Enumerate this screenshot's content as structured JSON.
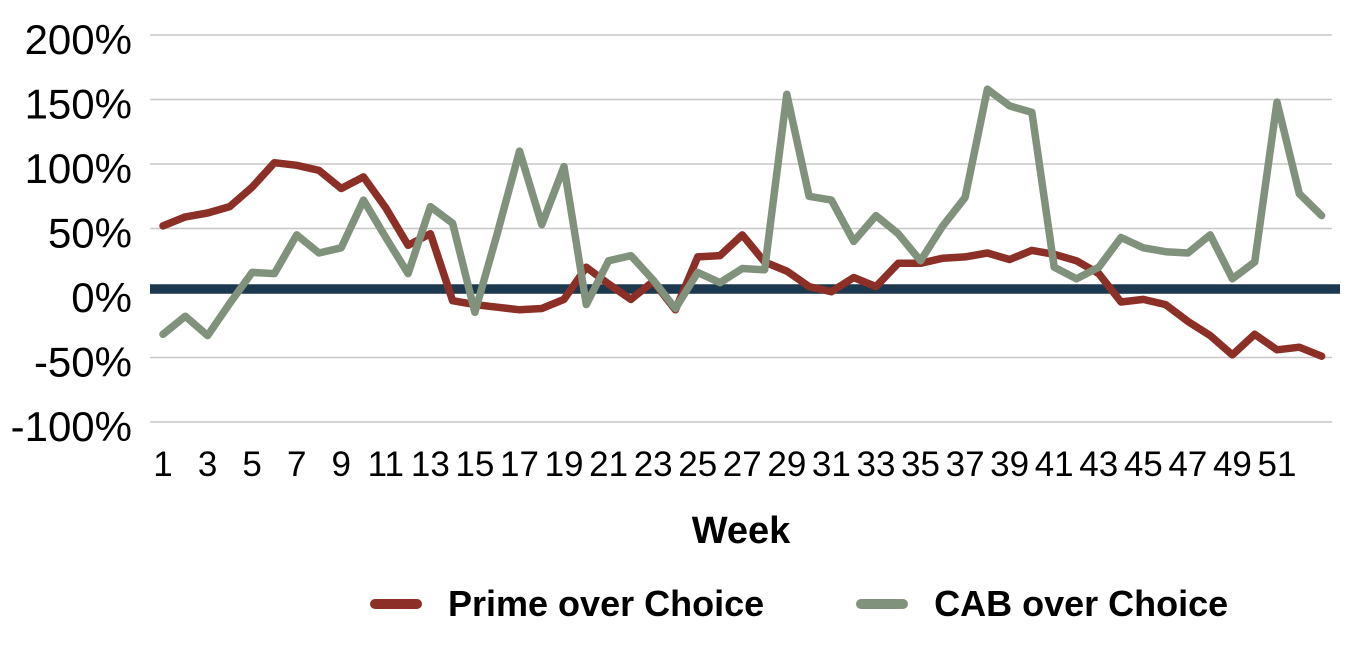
{
  "chart_data": {
    "type": "line",
    "title": "",
    "xlabel": "Week",
    "ylabel": "",
    "x_start_week": 1,
    "x_end_week": 53,
    "x_tick_labels": [
      "1",
      "3",
      "5",
      "7",
      "9",
      "11",
      "13",
      "15",
      "17",
      "19",
      "21",
      "23",
      "25",
      "27",
      "29",
      "31",
      "33",
      "35",
      "37",
      "39",
      "41",
      "43",
      "45",
      "47",
      "49",
      "51"
    ],
    "x_tick_weeks": [
      1,
      3,
      5,
      7,
      9,
      11,
      13,
      15,
      17,
      19,
      21,
      23,
      25,
      27,
      29,
      31,
      33,
      35,
      37,
      39,
      41,
      43,
      45,
      47,
      49,
      51
    ],
    "y_tick_labels": [
      "200%",
      "150%",
      "100%",
      "50%",
      "0%",
      "-50%",
      "-100%"
    ],
    "y_tick_values": [
      200,
      150,
      100,
      50,
      0,
      -50,
      -100
    ],
    "ylim": [
      -100,
      200
    ],
    "grid": true,
    "legend_position": "bottom",
    "unit": "percent",
    "zero_baseline": {
      "value": 0,
      "color": "#1C394F"
    },
    "gridline_color": "#C7C7C7",
    "series": [
      {
        "name": "Prime over Choice",
        "color": "#8C2F26",
        "values": [
          52,
          59,
          62,
          67,
          82,
          101,
          99,
          95,
          81,
          90,
          66,
          37,
          46,
          -6,
          -9,
          -11,
          -13,
          -12,
          -5,
          20,
          7,
          -5,
          9,
          -13,
          28,
          29,
          45,
          24,
          17,
          5,
          1,
          12,
          5,
          23,
          23,
          27,
          28,
          31,
          26,
          33,
          30,
          25,
          15,
          -7,
          -5,
          -9,
          -22,
          -33,
          -48,
          -32,
          -44,
          -42,
          -49
        ]
      },
      {
        "name": "CAB over Choice",
        "color": "#80917C",
        "values": [
          -32,
          -18,
          -33,
          -8,
          16,
          15,
          45,
          31,
          35,
          72,
          43,
          15,
          67,
          54,
          -15,
          46,
          110,
          53,
          98,
          -9,
          25,
          29,
          10,
          -12,
          16,
          8,
          19,
          18,
          154,
          75,
          72,
          40,
          60,
          46,
          25,
          52,
          74,
          158,
          145,
          140,
          20,
          11,
          20,
          43,
          35,
          32,
          31,
          45,
          11,
          24,
          148,
          77,
          60
        ]
      }
    ]
  },
  "legend": {
    "prime_label": "Prime over Choice",
    "cab_label": "CAB over Choice"
  }
}
